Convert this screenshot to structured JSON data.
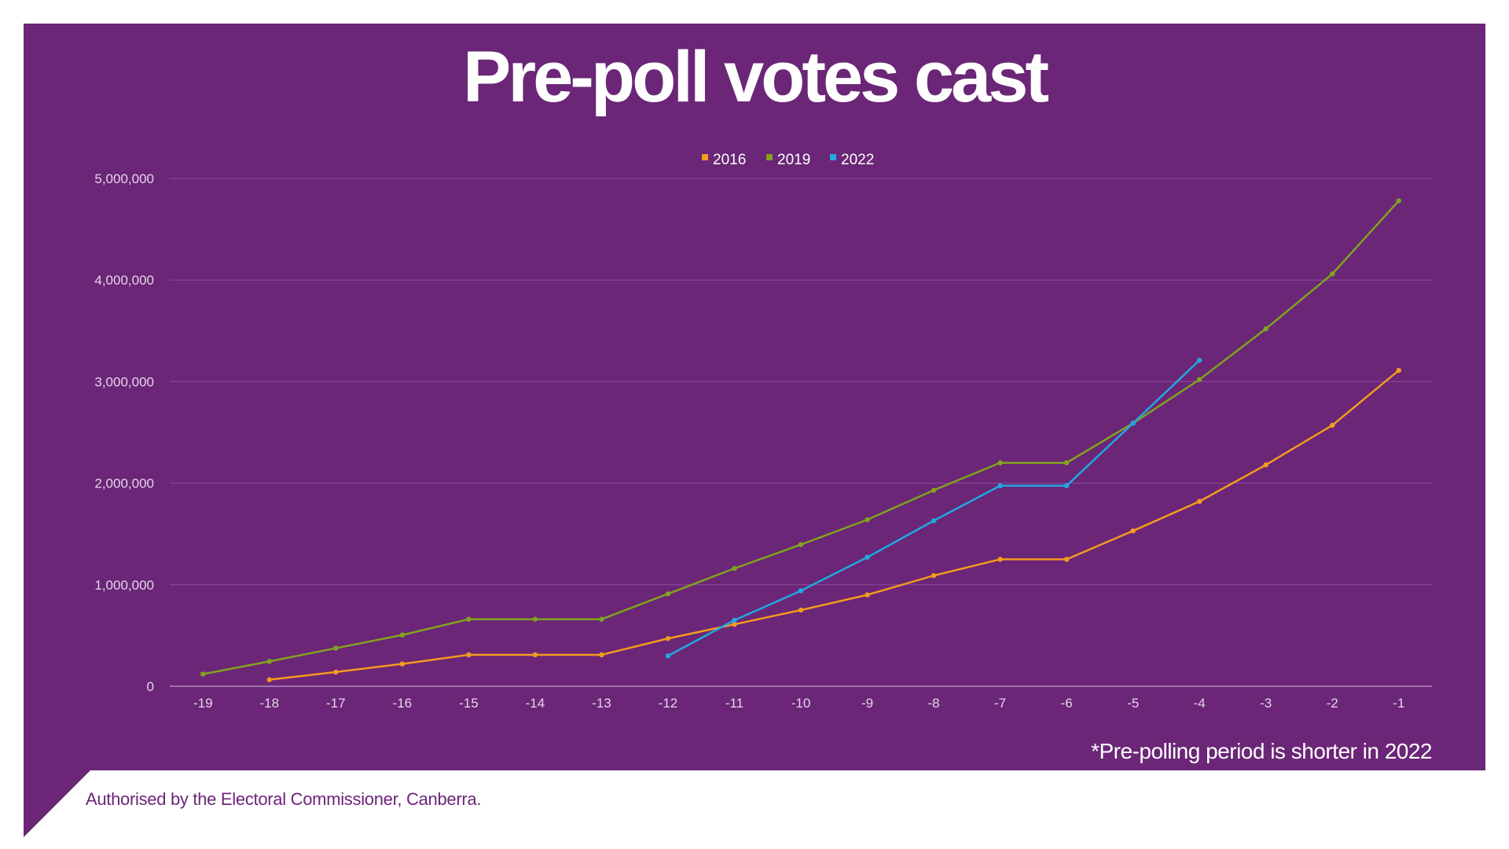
{
  "chart_data": {
    "type": "line",
    "title": "Pre-poll votes cast",
    "xlabel": "",
    "ylabel": "",
    "categories": [
      "-19",
      "-18",
      "-17",
      "-16",
      "-15",
      "-14",
      "-13",
      "-12",
      "-11",
      "-10",
      "-9",
      "-8",
      "-7",
      "-6",
      "-5",
      "-4",
      "-3",
      "-2",
      "-1"
    ],
    "ylim": [
      0,
      5000000
    ],
    "yticks": [
      0,
      1000000,
      2000000,
      3000000,
      4000000,
      5000000
    ],
    "ytick_labels": [
      "0",
      "1,000,000",
      "2,000,000",
      "3,000,000",
      "4,000,000",
      "5,000,000"
    ],
    "grid": true,
    "legend_position": "top-center",
    "series": [
      {
        "name": "2016",
        "color": "#f39b1f",
        "values": [
          null,
          65000,
          140000,
          220000,
          310000,
          310000,
          310000,
          470000,
          610000,
          750000,
          900000,
          1090000,
          1250000,
          1250000,
          1530000,
          1820000,
          2180000,
          2570000,
          3110000
        ]
      },
      {
        "name": "2019",
        "color": "#7fa41d",
        "values": [
          120000,
          245000,
          375000,
          505000,
          660000,
          660000,
          660000,
          910000,
          1160000,
          1395000,
          1640000,
          1930000,
          2200000,
          2200000,
          2590000,
          3020000,
          3520000,
          4060000,
          4780000
        ]
      },
      {
        "name": "2022",
        "color": "#22a8e0",
        "values": [
          null,
          null,
          null,
          null,
          null,
          null,
          null,
          300000,
          650000,
          940000,
          1270000,
          1630000,
          1975000,
          1975000,
          2590000,
          3210000,
          null,
          null,
          null
        ]
      }
    ],
    "annotation": "*Pre-polling period is shorter in 2022"
  },
  "footer": "Authorised by the Electoral Commissioner, Canberra.",
  "colors": {
    "background": "#6b2677",
    "text": "#ffffff"
  }
}
